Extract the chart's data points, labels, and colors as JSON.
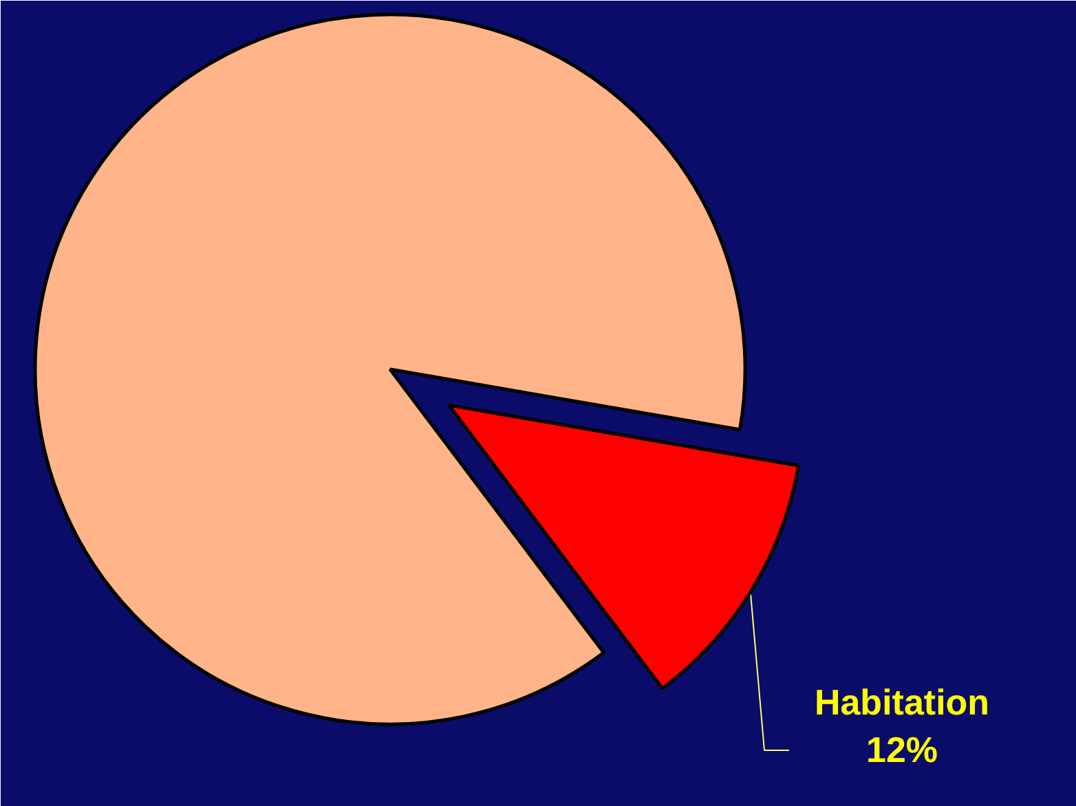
{
  "chart_data": {
    "type": "pie",
    "categories": [
      "Habitation",
      null
    ],
    "values": [
      12,
      88
    ],
    "colors": [
      "#ff0000",
      "#ffb48a"
    ],
    "value_labels": [
      "12%",
      null
    ]
  }
}
